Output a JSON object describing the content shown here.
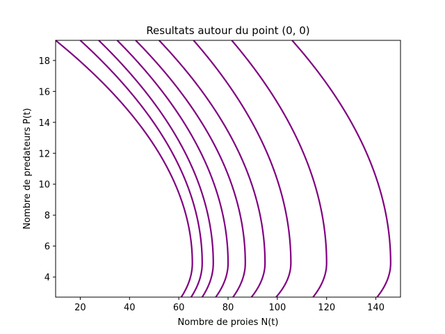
{
  "chart_data": {
    "type": "line",
    "title": "Resultats autour du point (0, 0)",
    "xlabel": "Nombre de proies N(t)",
    "ylabel": "Nombre de predateurs P(t)",
    "xlim": [
      10,
      150
    ],
    "ylim": [
      2.7,
      19.3
    ],
    "xticks": [
      20,
      40,
      60,
      80,
      100,
      120,
      140
    ],
    "yticks": [
      4,
      6,
      8,
      10,
      12,
      14,
      16,
      18
    ],
    "grid": false,
    "legend": "none",
    "series_color": "#800080",
    "curve_shape": {
      "model": "N = Nmax - k * (P - Pv)^2",
      "vertex_P": 4.9
    },
    "series": [
      {
        "Nmax": 65.5,
        "N_at_top": 10.0,
        "N_at_bottom": 61.0
      },
      {
        "Nmax": 69.5,
        "N_at_top": 20.0,
        "N_at_bottom": 65.0
      },
      {
        "Nmax": 74.0,
        "N_at_top": 27.5,
        "N_at_bottom": 69.5
      },
      {
        "Nmax": 80.0,
        "N_at_top": 35.0,
        "N_at_bottom": 75.0
      },
      {
        "Nmax": 87.0,
        "N_at_top": 42.5,
        "N_at_bottom": 82.0
      },
      {
        "Nmax": 95.0,
        "N_at_top": 52.0,
        "N_at_bottom": 89.5
      },
      {
        "Nmax": 105.5,
        "N_at_top": 66.0,
        "N_at_bottom": 99.5
      },
      {
        "Nmax": 120.0,
        "N_at_top": 81.5,
        "N_at_bottom": 114.5
      },
      {
        "Nmax": 146.0,
        "N_at_top": 106.0,
        "N_at_bottom": 140.5
      }
    ]
  }
}
